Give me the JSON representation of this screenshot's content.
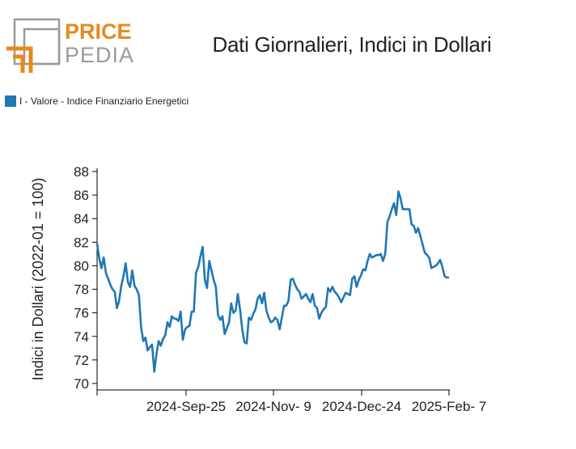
{
  "logo": {
    "line1": "PRICE",
    "line2": "PEDIA",
    "accent": "#e8891e",
    "gray": "#9a9a9a"
  },
  "title": "Dati Giornalieri, Indici in Dollari",
  "chart_data": {
    "type": "line",
    "title": "Dati Giornalieri, Indici in Dollari",
    "xlabel": "",
    "ylabel": "Indici in Dollari (2022-01 = 100)",
    "ylim": [
      70,
      88
    ],
    "yticks": [
      70,
      72,
      74,
      76,
      78,
      80,
      82,
      84,
      86,
      88
    ],
    "xtick_labels": [
      "2024-Sep-25",
      "2024-Nov- 9",
      "2024-Dec-24",
      "2025-Feb- 7"
    ],
    "legend": "top-left",
    "series": [
      {
        "name": "I - Valore - Indice Finanziario Energetici",
        "color": "#1f77b4",
        "values": [
          81.9,
          80.6,
          79.8,
          80.7,
          79.4,
          78.9,
          78.4,
          78.0,
          77.8,
          76.4,
          77.0,
          78.3,
          79.1,
          80.2,
          78.6,
          78.2,
          79.6,
          78.3,
          78.0,
          77.5,
          74.8,
          73.6,
          73.9,
          72.8,
          73.1,
          73.3,
          71.0,
          72.5,
          73.6,
          73.2,
          73.8,
          74.1,
          75.2,
          74.8,
          75.7,
          75.5,
          75.5,
          75.3,
          76.1,
          73.7,
          74.6,
          74.8,
          74.9,
          76.1,
          76.1,
          79.4,
          79.9,
          80.8,
          81.6,
          78.8,
          78.1,
          80.4,
          79.6,
          78.8,
          78.2,
          75.8,
          75.4,
          75.7,
          74.2,
          74.7,
          75.2,
          76.8,
          76.0,
          76.2,
          77.6,
          76.3,
          74.6,
          73.5,
          73.4,
          75.6,
          75.4,
          75.9,
          76.3,
          77.2,
          77.5,
          76.8,
          77.7,
          76.2,
          75.6,
          75.2,
          75.3,
          75.6,
          75.4,
          74.6,
          75.6,
          76.6,
          76.6,
          77.0,
          78.8,
          78.9,
          78.4,
          78.0,
          77.8,
          77.2,
          77.4,
          77.6,
          77.2,
          76.9,
          77.6,
          76.6,
          76.4,
          75.5,
          76.0,
          76.3,
          76.5,
          78.1,
          77.8,
          78.2,
          77.8,
          77.6,
          77.3,
          76.9,
          77.3,
          77.7,
          77.6,
          77.5,
          78.9,
          79.1,
          78.2,
          78.8,
          79.2,
          79.7,
          79.6,
          80.4,
          81.0,
          80.7,
          80.8,
          80.9,
          80.9,
          81.0,
          80.4,
          81.0,
          83.7,
          84.2,
          84.8,
          85.3,
          84.3,
          86.3,
          85.7,
          84.8,
          84.8,
          84.8,
          84.8,
          83.5,
          83.4,
          82.8,
          83.2,
          82.5,
          81.8,
          81.1,
          80.9,
          80.7,
          79.8,
          79.9,
          80.0,
          80.2,
          80.5,
          79.9,
          79.1,
          79.0,
          79.0
        ]
      }
    ]
  }
}
